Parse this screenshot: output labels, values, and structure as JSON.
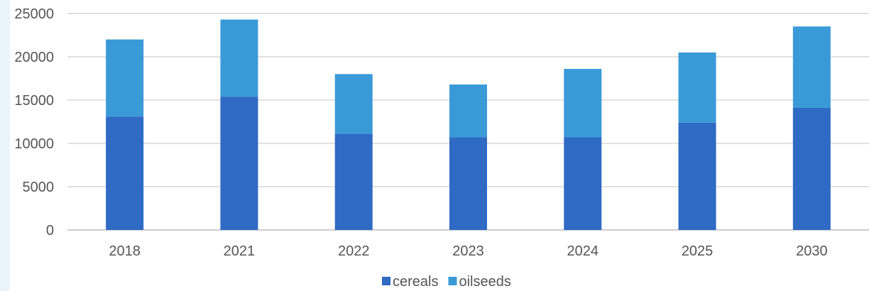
{
  "chart_data": {
    "type": "bar",
    "stacked": true,
    "categories": [
      "2018",
      "2021",
      "2022",
      "2023",
      "2024",
      "2025",
      "2030"
    ],
    "series": [
      {
        "name": "cereals",
        "color": "#2f6ac4",
        "values": [
          13100,
          15400,
          11100,
          10700,
          10700,
          12400,
          14100
        ]
      },
      {
        "name": "oilseeds",
        "color": "#3a9ad8",
        "values": [
          8900,
          8900,
          6900,
          6100,
          7900,
          8100,
          9400
        ]
      }
    ],
    "ylim": [
      0,
      25000
    ],
    "yticks": [
      "0",
      "5000",
      "10000",
      "15000",
      "20000",
      "25000"
    ],
    "grid": true,
    "legend_position": "bottom"
  }
}
